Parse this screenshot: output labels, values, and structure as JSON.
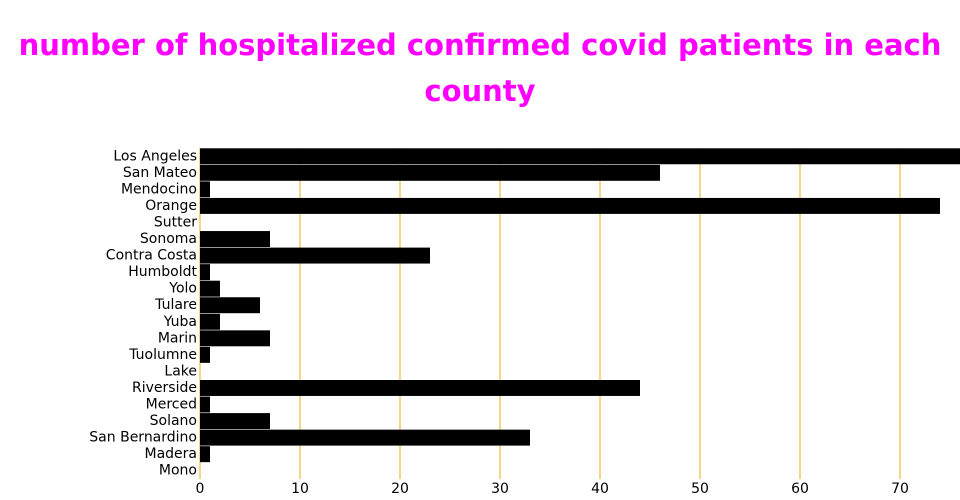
{
  "chart_data": {
    "type": "bar",
    "orientation": "horizontal",
    "title": "number of hospitalized confirmed covid patients in each county",
    "categories": [
      "Los Angeles",
      "San Mateo",
      "Mendocino",
      "Orange",
      "Sutter",
      "Sonoma",
      "Contra Costa",
      "Humboldt",
      "Yolo",
      "Tulare",
      "Yuba",
      "Marin",
      "Tuolumne",
      "Lake",
      "Riverside",
      "Merced",
      "Solano",
      "San Bernardino",
      "Madera",
      "Mono"
    ],
    "values": [
      76,
      46,
      1,
      74,
      0,
      7,
      23,
      1,
      2,
      6,
      2,
      7,
      1,
      0,
      44,
      1,
      7,
      33,
      1,
      0
    ],
    "color": "#000000",
    "xlim": [
      0,
      76
    ],
    "xticks": [
      0,
      10,
      20,
      30,
      40,
      50,
      60,
      70
    ],
    "grid": true,
    "grid_color": "#f2c85b",
    "title_color": "#ff00ff"
  }
}
